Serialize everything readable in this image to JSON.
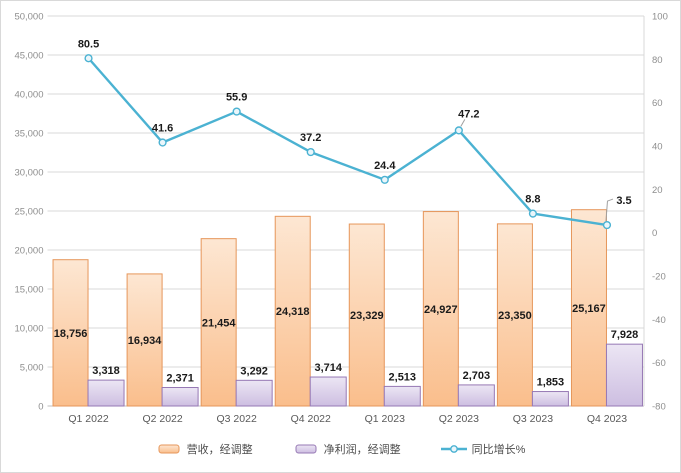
{
  "colors": {
    "background": "#ffffff",
    "chart_border": "#d9d9d9",
    "gridline": "#d9d9d9",
    "axis_line": "#bfbfbf",
    "tick_text": "#8e8e8e",
    "category_text": "#595959",
    "data_label_text": "#1a1a1a",
    "leader_line": "#a0a0a0",
    "revenue_fill_top": "#fde7d3",
    "revenue_fill_bottom": "#fabe8c",
    "revenue_border": "#e6965a",
    "profit_fill_top": "#ece6f4",
    "profit_fill_bottom": "#cdbee1",
    "profit_border": "#9678b4",
    "line_color": "#4bb2d2",
    "marker_fill": "#eaf6fb"
  },
  "chart_data": {
    "type": "combo-bar-line",
    "title": "",
    "categories": [
      "Q1 2022",
      "Q2 2022",
      "Q3 2022",
      "Q4 2022",
      "Q1 2023",
      "Q2 2023",
      "Q3 2023",
      "Q4 2023"
    ],
    "series": [
      {
        "name": "营收，经调整",
        "type": "bar",
        "axis": "left",
        "values": [
          18756,
          16934,
          21454,
          24318,
          23329,
          24927,
          23350,
          25167
        ],
        "labels": [
          "18,756",
          "16,934",
          "21,454",
          "24,318",
          "23,329",
          "24,927",
          "23,350",
          "25,167"
        ]
      },
      {
        "name": "净利润，经调整",
        "type": "bar",
        "axis": "left",
        "values": [
          3318,
          2371,
          3292,
          3714,
          2513,
          2703,
          1853,
          7928
        ],
        "labels": [
          "3,318",
          "2,371",
          "3,292",
          "3,714",
          "2,513",
          "2,703",
          "1,853",
          "7,928"
        ]
      },
      {
        "name": "同比增长%",
        "type": "line",
        "axis": "right",
        "values": [
          80.5,
          41.6,
          55.9,
          37.2,
          24.4,
          47.2,
          8.8,
          3.5
        ],
        "labels": [
          "80.5",
          "41.6",
          "55.9",
          "37.2",
          "24.4",
          "47.2",
          "8.8",
          "3.5"
        ],
        "label_callouts": [
          false,
          false,
          false,
          false,
          false,
          true,
          false,
          true
        ]
      }
    ],
    "left_axis": {
      "min": 0,
      "max": 50000,
      "step": 5000,
      "ticks": [
        "0",
        "5,000",
        "10,000",
        "15,000",
        "20,000",
        "25,000",
        "30,000",
        "35,000",
        "40,000",
        "45,000",
        "50,000"
      ]
    },
    "right_axis": {
      "min": -80,
      "max": 100,
      "step": 20,
      "ticks": [
        "-80",
        "-60",
        "-40",
        "-20",
        "0",
        "20",
        "40",
        "60",
        "80",
        "100"
      ]
    },
    "grid": true,
    "legend_position": "bottom"
  }
}
